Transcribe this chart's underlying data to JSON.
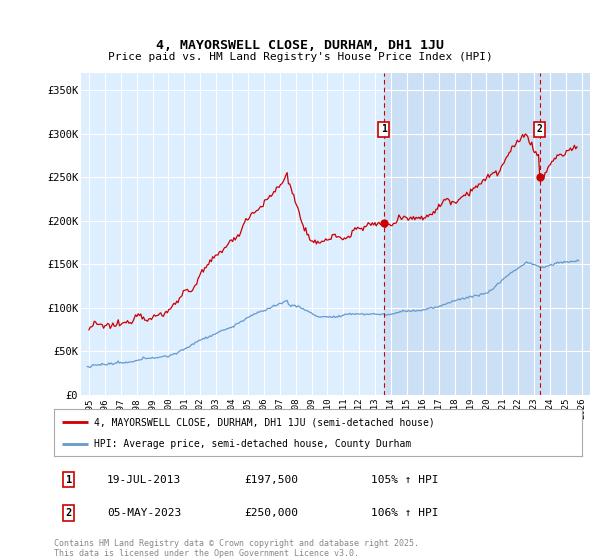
{
  "title": "4, MAYORSWELL CLOSE, DURHAM, DH1 1JU",
  "subtitle": "Price paid vs. HM Land Registry's House Price Index (HPI)",
  "ylabel_ticks": [
    "£0",
    "£50K",
    "£100K",
    "£150K",
    "£200K",
    "£250K",
    "£300K",
    "£350K"
  ],
  "ytick_vals": [
    0,
    50000,
    100000,
    150000,
    200000,
    250000,
    300000,
    350000
  ],
  "ylim": [
    0,
    370000
  ],
  "xlim_start": 1994.5,
  "xlim_end": 2026.5,
  "red_line_color": "#cc0000",
  "blue_line_color": "#6699cc",
  "marker1_date": 2013.54,
  "marker1_price": 197500,
  "marker2_date": 2023.34,
  "marker2_price": 250000,
  "legend1": "4, MAYORSWELL CLOSE, DURHAM, DH1 1JU (semi-detached house)",
  "legend2": "HPI: Average price, semi-detached house, County Durham",
  "annotation1_date": "19-JUL-2013",
  "annotation1_price": "£197,500",
  "annotation1_hpi": "105% ↑ HPI",
  "annotation2_date": "05-MAY-2023",
  "annotation2_price": "£250,000",
  "annotation2_hpi": "106% ↑ HPI",
  "footer": "Contains HM Land Registry data © Crown copyright and database right 2025.\nThis data is licensed under the Open Government Licence v3.0.",
  "plot_bg_color": "#ddeeff",
  "highlight_bg_color": "#cce0f5",
  "grid_color": "#ffffff",
  "fig_bg_color": "#ffffff",
  "hatch_start": 2025.42
}
